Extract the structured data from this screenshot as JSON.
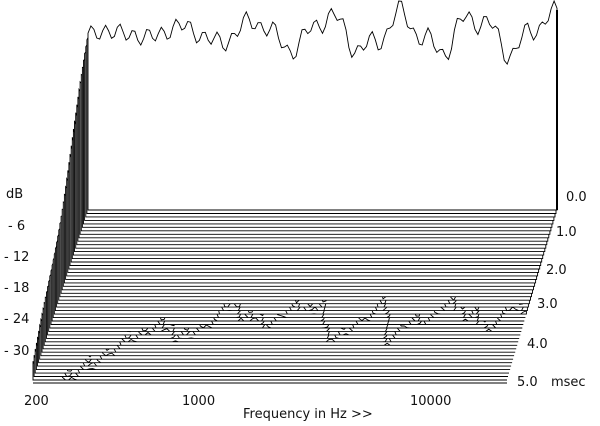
{
  "chart_data": {
    "type": "waterfall",
    "title": "",
    "xlabel": "Frequency in Hz >>",
    "ylabel": "dB",
    "zlabel": "msec",
    "x_scale": "log",
    "x_ticks": [
      200,
      1000,
      10000
    ],
    "x_tick_labels": [
      "200",
      "1000",
      "10000"
    ],
    "y_ticks": [
      -6,
      -12,
      -18,
      -24,
      -30
    ],
    "y_tick_labels": [
      "- 6",
      "- 12",
      "- 18",
      "- 24",
      "- 30"
    ],
    "z_ticks": [
      0.0,
      1.0,
      2.0,
      3.0,
      4.0,
      5.0
    ],
    "z_tick_labels": [
      "0.0",
      "1.0",
      "2.0",
      "3.0",
      "4.0",
      "5.0"
    ],
    "xlim": [
      200,
      20000
    ],
    "zlim": [
      0.0,
      5.0
    ],
    "slices": 50,
    "line_color": "#000000",
    "fill_color": "#ffffff"
  }
}
